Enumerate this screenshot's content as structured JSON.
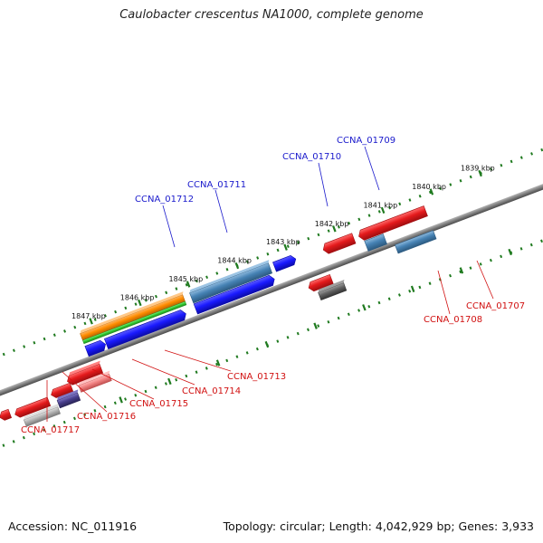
{
  "title": "Caulobacter crescentus NA1000, complete genome",
  "footer": {
    "accession": "Accession: NC_011916",
    "stats": "Topology: circular; Length: 4,042,929 bp; Genes: 3,933"
  },
  "colors": {
    "backbone": "#808080",
    "tick_major": "#1f7a1f",
    "tick_minor": "#1f7a1f",
    "forward_label": "#1a1acc",
    "reverse_label": "#d11111",
    "gene_red": "#e41a1c",
    "gene_blue": "#1a1aff",
    "gene_steelblue": "#4682b4",
    "gene_orange": "#ff8c00",
    "gene_green": "#33cc33",
    "gene_gray": "#b0b0b0",
    "gene_darkgray": "#606060",
    "gene_purple": "#483d8b",
    "gene_pink": "#f08080"
  },
  "kbp_ticks": [
    "1839 kbp",
    "1840 kbp",
    "1841 kbp",
    "1842 kbp",
    "1843 kbp",
    "1844 kbp",
    "1845 kbp",
    "1846 kbp",
    "1847 kbp"
  ],
  "forward_labels": [
    "CCNA_01709",
    "CCNA_01710",
    "CCNA_01711",
    "CCNA_01712"
  ],
  "reverse_labels": [
    "CCNA_01707",
    "CCNA_01708",
    "CCNA_01713",
    "CCNA_01714",
    "CCNA_01715",
    "CCNA_01716",
    "CCNA_01717"
  ]
}
